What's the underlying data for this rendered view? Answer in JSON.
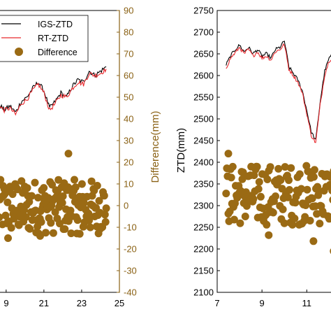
{
  "colors": {
    "igs": "#000000",
    "rt": "#e8292e",
    "difference": "#9a6a14",
    "difference_axis": "#8a6114",
    "axis": "#000000"
  },
  "legend": {
    "items": [
      {
        "label": "IGS-ZTD",
        "marker": "line",
        "color": "#000000"
      },
      {
        "label": "RT-ZTD",
        "marker": "line",
        "color": "#e8292e"
      },
      {
        "label": "Difference",
        "marker": "dot",
        "color": "#9a6a14"
      }
    ]
  },
  "chart_data": [
    {
      "type": "line",
      "title": "",
      "xlabel": "",
      "x_ticks": [
        "9",
        "21",
        "23",
        "25"
      ],
      "xlim": [
        18.6,
        25
      ],
      "y_right": {
        "label": "Difference(mm)",
        "ticks": [
          "90",
          "80",
          "70",
          "60",
          "50",
          "40",
          "30",
          "20",
          "10",
          "0",
          "-10",
          "-20",
          "-30",
          "-40"
        ],
        "ylim": [
          -40,
          90
        ]
      },
      "series": [
        {
          "name": "IGS-ZTD",
          "axis": "right-scaled",
          "color": "#000000",
          "x": [
            18.6,
            18.9,
            19.2,
            19.5,
            19.8,
            20.1,
            20.4,
            20.7,
            21.0,
            21.3,
            21.6,
            21.9,
            22.2,
            22.5,
            22.8,
            23.1,
            23.4,
            23.7,
            24.0,
            24.3
          ],
          "y": [
            47,
            44,
            46,
            43,
            48,
            50,
            54,
            57,
            53,
            45,
            48,
            52,
            50,
            55,
            58,
            57,
            62,
            60,
            62,
            64
          ]
        },
        {
          "name": "RT-ZTD",
          "axis": "right-scaled",
          "color": "#e8292e",
          "x": [
            18.6,
            18.9,
            19.2,
            19.5,
            19.8,
            20.1,
            20.4,
            20.7,
            21.0,
            21.3,
            21.6,
            21.9,
            22.2,
            22.5,
            22.8,
            23.1,
            23.4,
            23.7,
            24.0,
            24.3
          ],
          "y": [
            46,
            44,
            45,
            42,
            47,
            49,
            53,
            56,
            52,
            44,
            47,
            51,
            50,
            54,
            57,
            56,
            61,
            60,
            61,
            63
          ]
        }
      ],
      "difference": {
        "name": "Difference",
        "type": "scatter",
        "color": "#9a6a14",
        "x_range": [
          18.6,
          24.3
        ],
        "band_mm": [
          -13,
          12
        ],
        "outliers": [
          {
            "x": 22.3,
            "y": 24
          },
          {
            "x": 19.1,
            "y": -15
          },
          {
            "x": 20.8,
            "y": -14
          },
          {
            "x": 22.9,
            "y": -13
          }
        ]
      }
    },
    {
      "type": "line",
      "title": "",
      "xlabel": "",
      "x_ticks": [
        "7",
        "9",
        "11"
      ],
      "xlim": [
        7,
        12.3
      ],
      "ylabel": "ZTD(mm)",
      "y_ticks": [
        "2750",
        "2700",
        "2650",
        "2600",
        "2550",
        "2500",
        "2450",
        "2400",
        "2350",
        "2300",
        "2250",
        "2200",
        "2150",
        "2100"
      ],
      "ylim": [
        2100,
        2750
      ],
      "series": [
        {
          "name": "IGS-ZTD",
          "color": "#000000",
          "x": [
            7.4,
            7.6,
            7.8,
            8.0,
            8.2,
            8.4,
            8.6,
            8.8,
            9.0,
            9.2,
            9.4,
            9.6,
            9.8,
            10.0,
            10.2,
            10.4,
            10.6,
            10.8,
            11.0,
            11.2,
            11.4,
            11.6,
            11.8,
            12.0,
            12.3
          ],
          "y": [
            2625,
            2645,
            2660,
            2670,
            2655,
            2665,
            2650,
            2660,
            2645,
            2650,
            2640,
            2660,
            2665,
            2680,
            2620,
            2605,
            2590,
            2565,
            2520,
            2470,
            2450,
            2540,
            2610,
            2640,
            2660
          ]
        },
        {
          "name": "RT-ZTD",
          "color": "#e8292e",
          "x": [
            7.4,
            7.6,
            7.8,
            8.0,
            8.2,
            8.4,
            8.6,
            8.8,
            9.0,
            9.2,
            9.4,
            9.6,
            9.8,
            10.0,
            10.2,
            10.4,
            10.6,
            10.8,
            11.0,
            11.2,
            11.4,
            11.6,
            11.8,
            12.0,
            12.3
          ],
          "y": [
            2618,
            2640,
            2652,
            2665,
            2650,
            2660,
            2645,
            2655,
            2640,
            2645,
            2636,
            2655,
            2660,
            2672,
            2615,
            2600,
            2585,
            2560,
            2512,
            2462,
            2445,
            2532,
            2602,
            2634,
            2652
          ]
        }
      ],
      "difference": {
        "name": "Difference",
        "type": "scatter",
        "color": "#9a6a14",
        "x_range": [
          7.4,
          12.3
        ],
        "band_ztd": [
          2255,
          2395
        ],
        "outliers": [
          {
            "x": 7.5,
            "y": 2420
          },
          {
            "x": 9.3,
            "y": 2232
          },
          {
            "x": 11.3,
            "y": 2218
          },
          {
            "x": 12.2,
            "y": 2195
          }
        ]
      }
    }
  ]
}
